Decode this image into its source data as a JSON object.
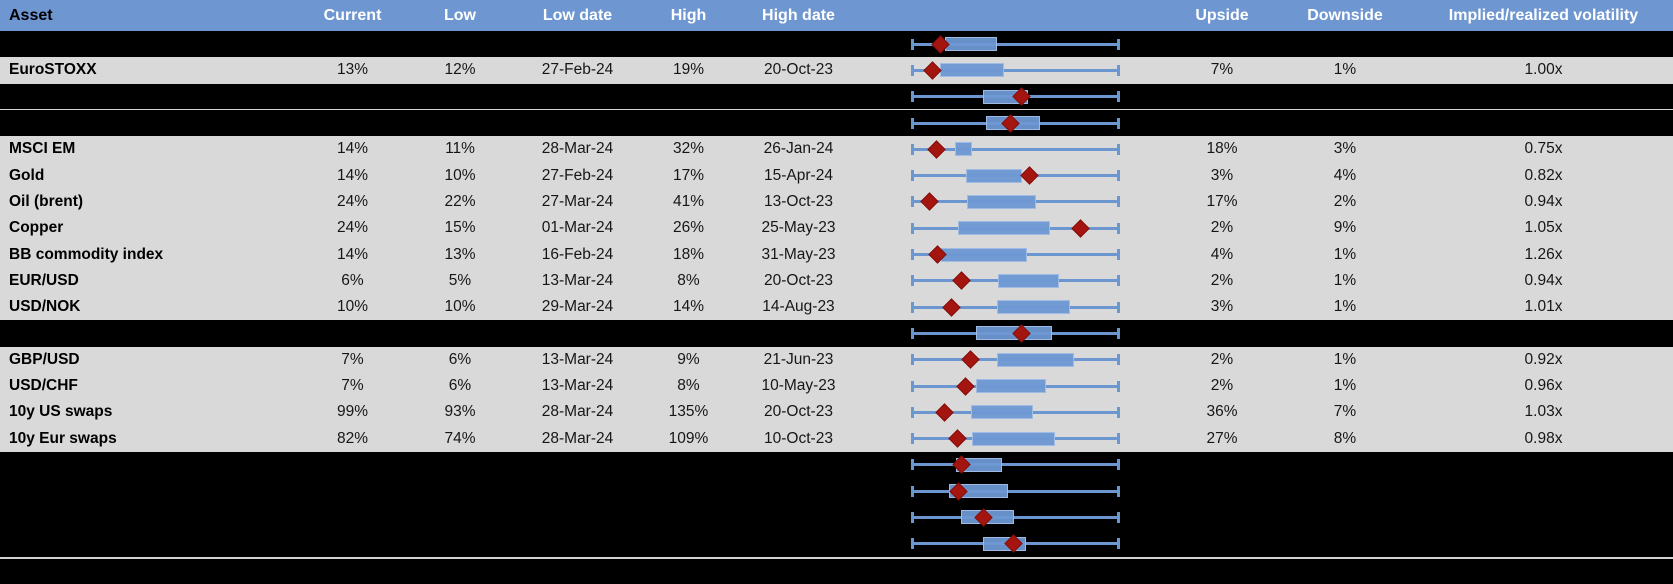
{
  "header": {
    "asset": "Asset",
    "current": "Current",
    "low": "Low",
    "low_date": "Low date",
    "high": "High",
    "high_date": "High date",
    "upside": "Upside",
    "downside": "Downside",
    "implied": "Implied/realized volatility"
  },
  "colors": {
    "header_bg": "#6e96d1",
    "row_gray": "#d9d9d9",
    "row_black": "#000000",
    "whisker_blue": "#6c96cf",
    "box_fill": "#6e98d3",
    "diamond_red": "#a5150f",
    "header_text": "#ffffff",
    "body_text": "#161616"
  },
  "chart_data": {
    "type": "table",
    "embedded_chart_type": "box-whisker",
    "embedded_chart_note": "Per-row horizontal box plot: whisker spans full 52-week low-high range (normalized 0-1), blue box = middle band of range, red diamond = current level within range.",
    "columns": [
      "Asset",
      "Current",
      "Low",
      "Low date",
      "High",
      "High date",
      "",
      "Upside",
      "Downside",
      "Implied/realized volatility"
    ],
    "rows": [
      {
        "asset": "",
        "current": "",
        "low": "",
        "low_date": "",
        "high": "",
        "high_date": "",
        "upside": "",
        "downside": "",
        "implied": "",
        "hidden": true,
        "plot": {
          "diamond": 0.137,
          "box": [
            0.158,
            0.411
          ]
        }
      },
      {
        "asset": "EuroSTOXX",
        "current": "13%",
        "low": "12%",
        "low_date": "27-Feb-24",
        "high": "19%",
        "high_date": "20-Oct-23",
        "upside": "7%",
        "downside": "1%",
        "implied": "1.00x",
        "hidden": false,
        "plot": {
          "diamond": 0.098,
          "box": [
            0.137,
            0.446
          ]
        }
      },
      {
        "asset": "",
        "current": "",
        "low": "",
        "low_date": "",
        "high": "",
        "high_date": "",
        "upside": "",
        "downside": "",
        "implied": "",
        "hidden": true,
        "plot": {
          "diamond": 0.533,
          "box": [
            0.345,
            0.565
          ]
        }
      },
      {
        "asset": "",
        "current": "",
        "low": "",
        "low_date": "",
        "high": "",
        "high_date": "",
        "upside": "",
        "downside": "",
        "implied": "",
        "hidden": true,
        "plot": {
          "diamond": 0.48,
          "box": [
            0.359,
            0.62
          ]
        }
      },
      {
        "asset": "MSCI EM",
        "current": "14%",
        "low": "11%",
        "low_date": "28-Mar-24",
        "high": "32%",
        "high_date": "26-Jan-24",
        "upside": "18%",
        "downside": "3%",
        "implied": "0.75x",
        "hidden": false,
        "plot": {
          "diamond": 0.12,
          "box": [
            0.207,
            0.293
          ]
        }
      },
      {
        "asset": "Gold",
        "current": "14%",
        "low": "10%",
        "low_date": "27-Feb-24",
        "high": "17%",
        "high_date": "15-Apr-24",
        "upside": "3%",
        "downside": "4%",
        "implied": "0.82x",
        "hidden": false,
        "plot": {
          "diamond": 0.57,
          "box": [
            0.264,
            0.533
          ]
        }
      },
      {
        "asset": "Oil (brent)",
        "current": "24%",
        "low": "22%",
        "low_date": "27-Mar-24",
        "high": "41%",
        "high_date": "13-Oct-23",
        "upside": "17%",
        "downside": "2%",
        "implied": "0.94x",
        "hidden": false,
        "plot": {
          "diamond": 0.085,
          "box": [
            0.269,
            0.603
          ]
        }
      },
      {
        "asset": "Copper",
        "current": "24%",
        "low": "15%",
        "low_date": "01-Mar-24",
        "high": "26%",
        "high_date": "25-May-23",
        "upside": "2%",
        "downside": "9%",
        "implied": "1.05x",
        "hidden": false,
        "plot": {
          "diamond": 0.82,
          "box": [
            0.223,
            0.67
          ]
        }
      },
      {
        "asset": "BB commodity index",
        "current": "14%",
        "low": "13%",
        "low_date": "16-Feb-24",
        "high": "18%",
        "high_date": "31-May-23",
        "upside": "4%",
        "downside": "1%",
        "implied": "1.26x",
        "hidden": false,
        "plot": {
          "diamond": 0.122,
          "box": [
            0.142,
            0.557
          ]
        }
      },
      {
        "asset": "EUR/USD",
        "current": "6%",
        "low": "5%",
        "low_date": "13-Mar-24",
        "high": "8%",
        "high_date": "20-Oct-23",
        "upside": "2%",
        "downside": "1%",
        "implied": "0.94x",
        "hidden": false,
        "plot": {
          "diamond": 0.242,
          "box": [
            0.419,
            0.715
          ]
        }
      },
      {
        "asset": "USD/NOK",
        "current": "10%",
        "low": "10%",
        "low_date": "29-Mar-24",
        "high": "14%",
        "high_date": "14-Aug-23",
        "upside": "3%",
        "downside": "1%",
        "implied": "1.01x",
        "hidden": false,
        "plot": {
          "diamond": 0.19,
          "box": [
            0.415,
            0.766
          ]
        }
      },
      {
        "asset": "",
        "current": "",
        "low": "",
        "low_date": "",
        "high": "",
        "high_date": "",
        "upside": "",
        "downside": "",
        "implied": "",
        "hidden": true,
        "plot": {
          "diamond": 0.533,
          "box": [
            0.309,
            0.682
          ]
        }
      },
      {
        "asset": "GBP/USD",
        "current": "7%",
        "low": "6%",
        "low_date": "13-Mar-24",
        "high": "9%",
        "high_date": "21-Jun-23",
        "upside": "2%",
        "downside": "1%",
        "implied": "0.92x",
        "hidden": false,
        "plot": {
          "diamond": 0.284,
          "box": [
            0.411,
            0.785
          ]
        }
      },
      {
        "asset": "USD/CHF",
        "current": "7%",
        "low": "6%",
        "low_date": "13-Mar-24",
        "high": "8%",
        "high_date": "10-May-23",
        "upside": "2%",
        "downside": "1%",
        "implied": "0.96x",
        "hidden": false,
        "plot": {
          "diamond": 0.259,
          "box": [
            0.313,
            0.65
          ]
        }
      },
      {
        "asset": "10y US swaps",
        "current": "99%",
        "low": "93%",
        "low_date": "28-Mar-24",
        "high": "135%",
        "high_date": "20-Oct-23",
        "upside": "36%",
        "downside": "7%",
        "implied": "1.03x",
        "hidden": false,
        "plot": {
          "diamond": 0.158,
          "box": [
            0.285,
            0.585
          ]
        }
      },
      {
        "asset": "10y Eur swaps",
        "current": "82%",
        "low": "74%",
        "low_date": "28-Mar-24",
        "high": "109%",
        "high_date": "10-Oct-23",
        "upside": "27%",
        "downside": "8%",
        "implied": "0.98x",
        "hidden": false,
        "plot": {
          "diamond": 0.223,
          "box": [
            0.293,
            0.696
          ]
        }
      },
      {
        "asset": "",
        "current": "",
        "low": "",
        "low_date": "",
        "high": "",
        "high_date": "",
        "upside": "",
        "downside": "",
        "implied": "",
        "hidden": true,
        "plot": {
          "diamond": 0.242,
          "box": [
            0.215,
            0.435
          ]
        }
      },
      {
        "asset": "",
        "current": "",
        "low": "",
        "low_date": "",
        "high": "",
        "high_date": "",
        "upside": "",
        "downside": "",
        "implied": "",
        "hidden": true,
        "plot": {
          "diamond": 0.228,
          "box": [
            0.179,
            0.464
          ]
        }
      },
      {
        "asset": "",
        "current": "",
        "low": "",
        "low_date": "",
        "high": "",
        "high_date": "",
        "upside": "",
        "downside": "",
        "implied": "",
        "hidden": true,
        "plot": {
          "diamond": 0.345,
          "box": [
            0.24,
            0.497
          ]
        }
      },
      {
        "asset": "",
        "current": "",
        "low": "",
        "low_date": "",
        "high": "",
        "high_date": "",
        "upside": "",
        "downside": "",
        "implied": "",
        "hidden": true,
        "plot": {
          "diamond": 0.492,
          "box": [
            0.345,
            0.552
          ]
        }
      }
    ]
  }
}
